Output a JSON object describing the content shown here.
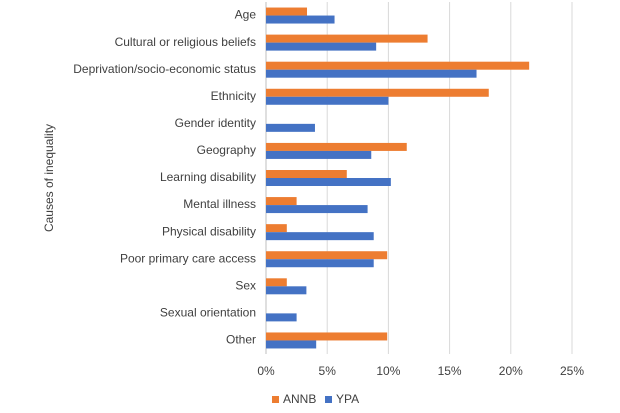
{
  "chart_data": {
    "type": "hbar",
    "y_label": "Causes of inequality",
    "categories": [
      "Age",
      "Cultural or religious beliefs",
      "Deprivation/socio-economic status",
      "Ethnicity",
      "Gender identity",
      "Geography",
      "Learning disability",
      "Mental illness",
      "Physical disability",
      "Poor primary care access",
      "Sex",
      "Sexual orientation",
      "Other"
    ],
    "series": [
      {
        "name": "ANNB",
        "color": "#ed7d31",
        "values": [
          3.35,
          13.2,
          21.5,
          18.2,
          0,
          11.5,
          6.6,
          2.5,
          1.7,
          9.9,
          1.7,
          0,
          9.9
        ]
      },
      {
        "name": "YPA",
        "color": "#4472c4",
        "values": [
          5.6,
          9.0,
          17.2,
          10.0,
          4.0,
          8.6,
          10.2,
          8.3,
          8.8,
          8.8,
          3.3,
          2.5,
          4.1
        ]
      }
    ],
    "xlim": [
      0,
      25
    ],
    "xticks": [
      {
        "value": 0,
        "label": "0%"
      },
      {
        "value": 5,
        "label": "5%"
      },
      {
        "value": 10,
        "label": "10%"
      },
      {
        "value": 15,
        "label": "15%"
      },
      {
        "value": 20,
        "label": "20%"
      },
      {
        "value": 25,
        "label": "25%"
      }
    ],
    "grid": true,
    "legend": "bottom"
  }
}
